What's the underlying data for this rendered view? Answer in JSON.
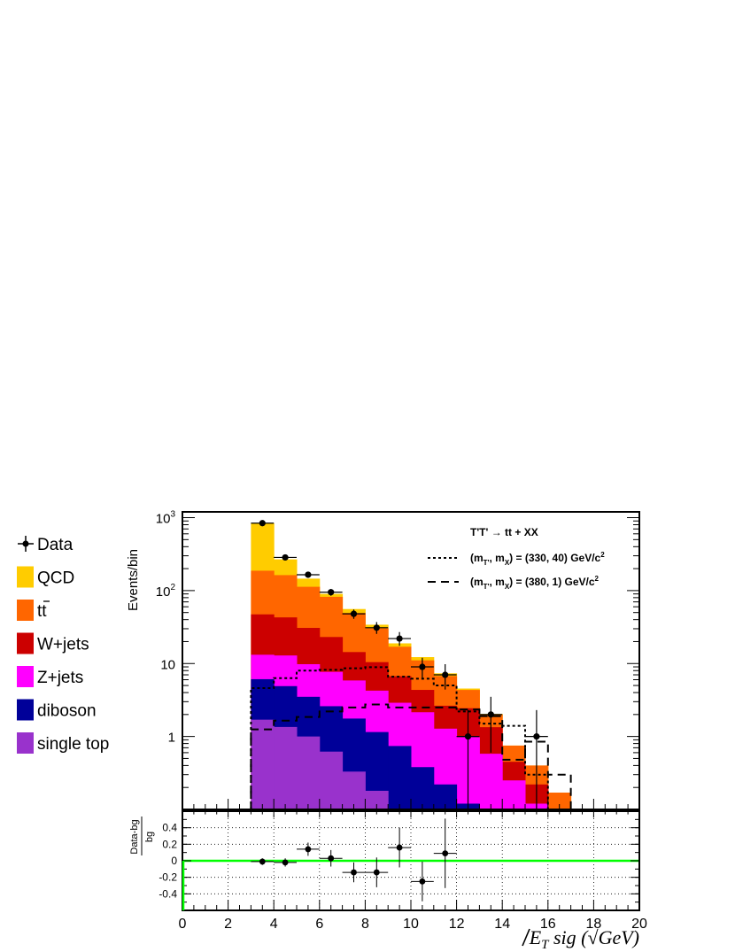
{
  "chart_data": {
    "type": "bar",
    "title": "",
    "main": {
      "ylabel": "Events/bin",
      "yscale": "log",
      "ylim": [
        0.1,
        1200
      ],
      "ytick_labels": [
        {
          "value": 1000,
          "base": "10",
          "exp": "3"
        },
        {
          "value": 100,
          "base": "10",
          "exp": "2"
        },
        {
          "value": 10,
          "base": "10",
          "exp": ""
        },
        {
          "value": 1,
          "base": "1",
          "exp": ""
        }
      ]
    },
    "xlabel": {
      "prefix": "E",
      "sub": "T",
      "mid": " sig (",
      "root": "√",
      "unit": "GeV",
      "close": ")"
    },
    "xlim": [
      0,
      20
    ],
    "xticks": [
      "0",
      "2",
      "4",
      "6",
      "8",
      "10",
      "12",
      "14",
      "16",
      "18",
      "20"
    ],
    "bin_edges": [
      3,
      4,
      5,
      6,
      7,
      8,
      9,
      10,
      11,
      12,
      13,
      14,
      15,
      16,
      17
    ],
    "stack": [
      {
        "name": "single top",
        "color": "#9932cc",
        "values": [
          1.7,
          1.35,
          1.0,
          0.62,
          0.33,
          0.18,
          0.1,
          0,
          0,
          0,
          0,
          0,
          0,
          0
        ]
      },
      {
        "name": "diboson",
        "color": "#000099",
        "values": [
          4.4,
          3.55,
          2.5,
          1.98,
          1.43,
          0.97,
          0.64,
          0.38,
          0.22,
          0.12,
          0,
          0,
          0,
          0
        ]
      },
      {
        "name": "Z+jets",
        "color": "#ff00ff",
        "values": [
          7.1,
          8.0,
          6.3,
          5.1,
          4.1,
          3.1,
          2.16,
          1.77,
          1.06,
          0.86,
          0.58,
          0.25,
          0.12,
          0
        ]
      },
      {
        "name": "W+jets",
        "color": "#cc0000",
        "values": [
          34,
          30,
          21,
          15.4,
          8.5,
          6.2,
          3.8,
          2.2,
          1.36,
          1.46,
          0.76,
          0.2,
          0.1,
          0
        ]
      },
      {
        "name": "tt̄",
        "color": "#ff6600",
        "values": [
          140,
          120,
          82,
          59,
          35,
          20,
          10.3,
          6.7,
          4.1,
          1.9,
          0.65,
          0.3,
          0.18,
          0.17
        ]
      },
      {
        "name": "QCD",
        "color": "#ffcc00",
        "values": [
          650,
          105,
          33,
          8,
          6.5,
          3.6,
          1.9,
          1.2,
          0.6,
          0.2,
          0.05,
          0,
          0,
          0
        ]
      }
    ],
    "data_points": {
      "name": "Data",
      "x": [
        3.5,
        4.5,
        5.5,
        6.5,
        7.5,
        8.5,
        9.5,
        10.5,
        11.5,
        12.5,
        13.5,
        15.5
      ],
      "y": [
        840,
        285,
        165,
        95,
        48,
        31,
        22,
        9,
        7,
        1,
        2,
        1
      ],
      "yerr_up": [
        30,
        17,
        13,
        10,
        7,
        6,
        5,
        3,
        2.8,
        1.3,
        1.5,
        1.3
      ],
      "yerr_low": [
        30,
        17,
        13,
        10,
        7,
        5.5,
        4.5,
        3,
        2.6,
        0.9,
        1.4,
        0.9
      ]
    },
    "signals": [
      {
        "label_parts": [
          "(m",
          "T'",
          ", m",
          "X",
          ") = (330, 40) GeV/c",
          "2"
        ],
        "style": "dotted",
        "values": [
          4.6,
          6.3,
          8.0,
          8.2,
          8.6,
          8.9,
          6.6,
          6.2,
          5.0,
          2.2,
          1.5,
          1.4,
          0.3,
          0
        ]
      },
      {
        "label_parts": [
          "(m",
          "T'",
          ", m",
          "X",
          ") = (380, 1) GeV/c",
          "2"
        ],
        "style": "dashed",
        "values": [
          1.25,
          1.65,
          1.85,
          2.2,
          2.5,
          2.75,
          2.5,
          2.5,
          2.5,
          2.35,
          1.9,
          0.48,
          0.85,
          0.3
        ]
      }
    ],
    "process_label": "T'T' → tt + XX",
    "ratio": {
      "ylabel_num": "Data-bg",
      "ylabel_den": "bg",
      "ylim": [
        -0.6,
        0.6
      ],
      "yticks": [
        "0.4",
        "0.2",
        "0",
        "-0.2",
        "-0.4"
      ],
      "ytick_values": [
        0.4,
        0.2,
        0,
        -0.2,
        -0.4
      ],
      "reference_line": 0,
      "reference_color": "#00ff00",
      "x": [
        3.5,
        4.5,
        5.5,
        6.5,
        7.5,
        8.5,
        9.5,
        10.5,
        11.5
      ],
      "y": [
        -0.01,
        -0.02,
        0.14,
        0.03,
        -0.14,
        -0.14,
        0.16,
        -0.25,
        0.09
      ],
      "yerr": [
        0.04,
        0.05,
        0.08,
        0.1,
        0.12,
        0.18,
        0.24,
        0.24,
        0.42
      ]
    },
    "legend": {
      "placement": "left",
      "entries": [
        {
          "label": "Data",
          "kind": "marker"
        },
        {
          "label": "QCD",
          "kind": "box",
          "color": "#ffcc00"
        },
        {
          "label_base": "t",
          "label_bar": "t",
          "kind": "box",
          "color": "#ff6600",
          "is_ttbar": true
        },
        {
          "label": "W+jets",
          "kind": "box",
          "color": "#cc0000"
        },
        {
          "label": "Z+jets",
          "kind": "box",
          "color": "#ff00ff"
        },
        {
          "label": "diboson",
          "kind": "box",
          "color": "#000099"
        },
        {
          "label": "single top",
          "kind": "box",
          "color": "#9932cc"
        }
      ]
    },
    "grid_ratio": true
  }
}
